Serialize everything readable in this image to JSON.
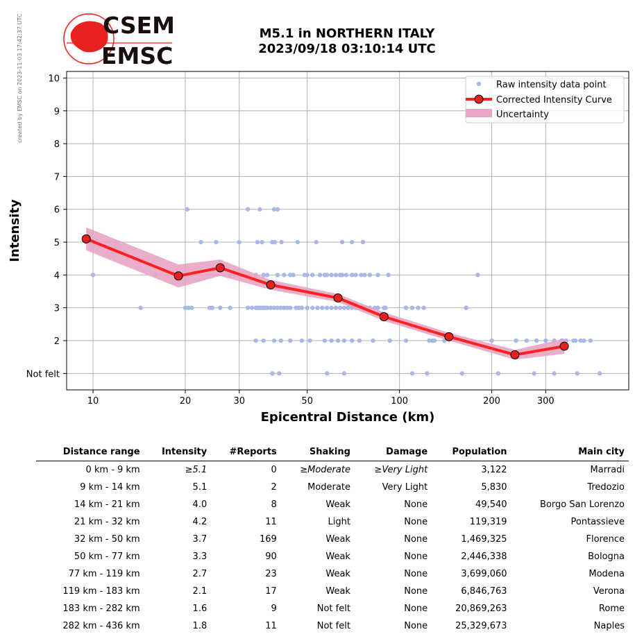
{
  "header": {
    "credit": "created by EMSC on 2023-11-03 17:42:37 UTC",
    "logo_top": "CSEM",
    "logo_bottom": "EMSC",
    "title_line1": "M5.1 in NORTHERN ITALY",
    "title_line2": "2023/09/18 03:10:14 UTC"
  },
  "colors": {
    "raw_points": "#aab8e6",
    "curve": "#ff2020",
    "marker_face": "#e32222",
    "uncertainty": "#e8a5c4",
    "grid": "#b0b0b0",
    "logo_red": "#e8221f"
  },
  "chart_data": {
    "type": "scatter",
    "title": "M5.1 in NORTHERN ITALY 2023/09/18 03:10:14 UTC",
    "xlabel": "Epicentral Distance (km)",
    "ylabel": "Intensity",
    "x_scale": "log",
    "xlim": [
      8.2,
      560
    ],
    "ylim": [
      0.5,
      10.2
    ],
    "x_ticks": [
      10,
      20,
      30,
      50,
      100,
      200,
      300
    ],
    "y_ticks": [
      1,
      2,
      3,
      4,
      5,
      6,
      7,
      8,
      9,
      10
    ],
    "y_tick_labels": [
      "Not felt",
      "2",
      "3",
      "4",
      "5",
      "6",
      "7",
      "8",
      "9",
      "10"
    ],
    "grid": true,
    "legend_position": "top-right",
    "legend": [
      "Raw intensity data point",
      "Corrected Intensity Curve",
      "Uncertainty"
    ],
    "curve": {
      "name": "Corrected Intensity Curve",
      "x": [
        9.5,
        19,
        26,
        38,
        63,
        89,
        145,
        238,
        345
      ],
      "y": [
        5.1,
        3.97,
        4.22,
        3.7,
        3.3,
        2.73,
        2.12,
        1.57,
        1.83
      ]
    },
    "uncertainty": {
      "name": "Uncertainty",
      "x": [
        9.5,
        19,
        26,
        38,
        63,
        89,
        145,
        238,
        345
      ],
      "lower": [
        4.75,
        3.62,
        3.97,
        3.55,
        3.18,
        2.6,
        2.0,
        1.42,
        1.6
      ],
      "upper": [
        5.45,
        4.32,
        4.47,
        3.85,
        3.42,
        2.86,
        2.24,
        1.72,
        2.06
      ]
    },
    "raw_points": {
      "name": "Raw intensity data point",
      "x": [
        10,
        14.3,
        16,
        20,
        20.5,
        21,
        24,
        24.5,
        26,
        28,
        32,
        33,
        34,
        34.5,
        35,
        35.5,
        36,
        36.5,
        37,
        38,
        39,
        40,
        41,
        42,
        43,
        44,
        46,
        47,
        48,
        50,
        52,
        54,
        56,
        58,
        60,
        62,
        64,
        66,
        68,
        70,
        72,
        75,
        78,
        80,
        83,
        85,
        90,
        105,
        110,
        115,
        125,
        130,
        160,
        200,
        240,
        260,
        280,
        320,
        340,
        370,
        400,
        420,
        9.5,
        20.3,
        22.5,
        25.2,
        30,
        34.4,
        35.6,
        38.4,
        39.2,
        41.2,
        46.5,
        53.5,
        65,
        70,
        76,
        35,
        39,
        50,
        58,
        65,
        70,
        75,
        80,
        105,
        165,
        180,
        32,
        40,
        55,
        62,
        70,
        80,
        85,
        28,
        34,
        36,
        37,
        40,
        42,
        44,
        45,
        49,
        52,
        57,
        60,
        64,
        67,
        72,
        77,
        92,
        120,
        165,
        34,
        36,
        39,
        41,
        44,
        48,
        51,
        57,
        60,
        63,
        66,
        70,
        74,
        82,
        93,
        105,
        128,
        140,
        200,
        240,
        280,
        300,
        338,
        350,
        375,
        390,
        38.5,
        40.5,
        58,
        66,
        110,
        123,
        160,
        210,
        275,
        320,
        380,
        450,
        36,
        47,
        73,
        89
      ],
      "y": [
        4,
        3,
        4,
        3,
        3,
        3,
        3,
        3,
        3,
        3,
        3,
        3,
        3,
        3,
        3,
        3,
        3,
        3,
        3,
        3,
        3,
        3,
        3,
        3,
        3,
        3,
        3,
        3,
        3,
        3,
        3,
        3,
        3,
        3,
        3,
        3,
        3,
        3,
        3,
        3,
        3,
        3,
        3,
        3,
        3,
        3,
        3,
        3,
        3,
        3,
        2,
        2,
        2,
        2,
        2,
        2,
        2,
        2,
        2,
        2,
        2,
        2,
        5,
        6,
        5,
        5,
        5,
        5,
        5,
        5,
        5,
        5,
        5,
        5,
        5,
        5,
        5,
        6,
        6,
        4,
        4,
        4,
        4,
        4,
        4,
        3,
        3,
        4,
        6,
        6,
        4,
        4,
        4,
        4,
        4,
        4,
        4,
        4,
        4,
        4,
        4,
        4,
        4,
        4,
        4,
        4,
        4,
        4,
        4,
        4,
        4,
        4,
        3,
        3,
        2,
        2,
        2,
        2,
        2,
        2,
        2,
        2,
        2,
        2,
        2,
        2,
        2,
        2,
        2,
        2,
        2,
        2,
        2,
        2,
        2,
        2,
        2,
        2,
        2,
        2,
        1,
        1,
        1,
        1,
        1,
        1,
        1,
        1,
        1,
        1,
        1,
        1,
        3,
        3,
        3,
        3
      ]
    }
  },
  "table": {
    "headers": [
      "Distance range",
      "Intensity",
      "#Reports",
      "Shaking",
      "Damage",
      "Population",
      "Main city"
    ],
    "rows": [
      [
        "0 km -    9 km",
        "≥5.1",
        "0",
        "≥Moderate",
        "≥Very Light",
        "3,122",
        "Marradi"
      ],
      [
        "9 km -   14 km",
        "5.1",
        "2",
        "Moderate",
        "Very Light",
        "5,830",
        "Tredozio"
      ],
      [
        "14 km -   21 km",
        "4.0",
        "8",
        "Weak",
        "None",
        "49,540",
        "Borgo San Lorenzo"
      ],
      [
        "21 km -   32 km",
        "4.2",
        "11",
        "Light",
        "None",
        "119,319",
        "Pontassieve"
      ],
      [
        "32 km -   50 km",
        "3.7",
        "169",
        "Weak",
        "None",
        "1,469,325",
        "Florence"
      ],
      [
        "50 km -   77 km",
        "3.3",
        "90",
        "Weak",
        "None",
        "2,446,338",
        "Bologna"
      ],
      [
        "77 km -  119 km",
        "2.7",
        "23",
        "Weak",
        "None",
        "3,699,060",
        "Modena"
      ],
      [
        "119 km -  183 km",
        "2.1",
        "17",
        "Weak",
        "None",
        "6,846,763",
        "Verona"
      ],
      [
        "183 km -  282 km",
        "1.6",
        "9",
        "Not felt",
        "None",
        "20,869,263",
        "Rome"
      ],
      [
        "282 km -  436 km",
        "1.8",
        "11",
        "Not felt",
        "None",
        "25,329,673",
        "Naples"
      ]
    ]
  }
}
